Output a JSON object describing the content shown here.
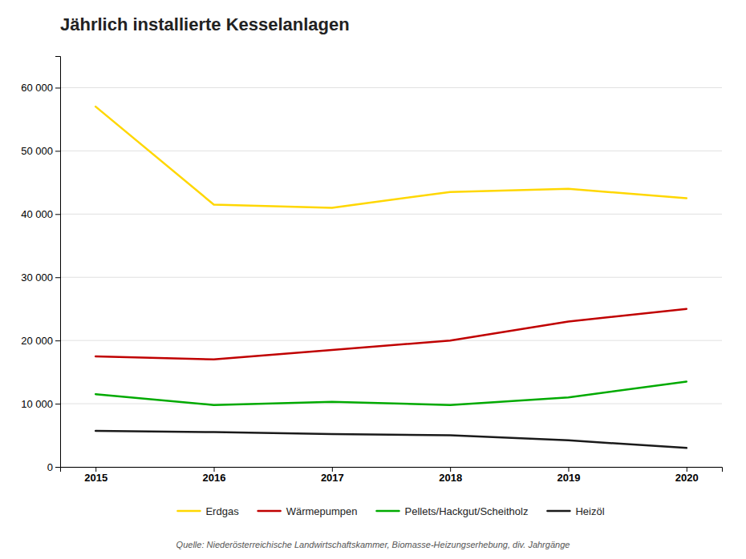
{
  "chart_data": {
    "type": "line",
    "title": "Jährlich installierte Kesselanlagen",
    "x": [
      2015,
      2016,
      2017,
      2018,
      2019,
      2020
    ],
    "xlim": [
      2014.7,
      2020.3
    ],
    "xticks": [
      2015,
      2016,
      2017,
      2018,
      2019,
      2020
    ],
    "series": [
      {
        "name": "Erdgas",
        "color": "#FFD700",
        "values": [
          57000,
          41500,
          41000,
          43500,
          44000,
          42500
        ]
      },
      {
        "name": "Wärmepumpen",
        "color": "#C00000",
        "values": [
          17500,
          17000,
          18500,
          20000,
          23000,
          25000
        ]
      },
      {
        "name": "Pellets/Hackgut/Scheitholz",
        "color": "#00AA00",
        "values": [
          11500,
          9800,
          10300,
          9800,
          11000,
          13500
        ]
      },
      {
        "name": "Heizöl",
        "color": "#1A1A1A",
        "values": [
          5700,
          5500,
          5200,
          5000,
          4200,
          3000
        ]
      }
    ],
    "ylim": [
      0,
      65000
    ],
    "yticks": [
      0,
      {
        "value": 10000,
        "label": "10 000"
      },
      {
        "value": 20000,
        "label": "20 000"
      },
      {
        "value": 30000,
        "label": "30 000"
      },
      {
        "value": 40000,
        "label": "40 000"
      },
      {
        "value": 50000,
        "label": "50 000"
      },
      {
        "value": 60000,
        "label": "60 000"
      }
    ],
    "grid": true,
    "legend": "bottom",
    "annotations": [
      "Quelle: Niederösterreichische Landwirtschaftskammer, Biomasse-Heizungserhebung, div. Jahrgänge"
    ]
  }
}
